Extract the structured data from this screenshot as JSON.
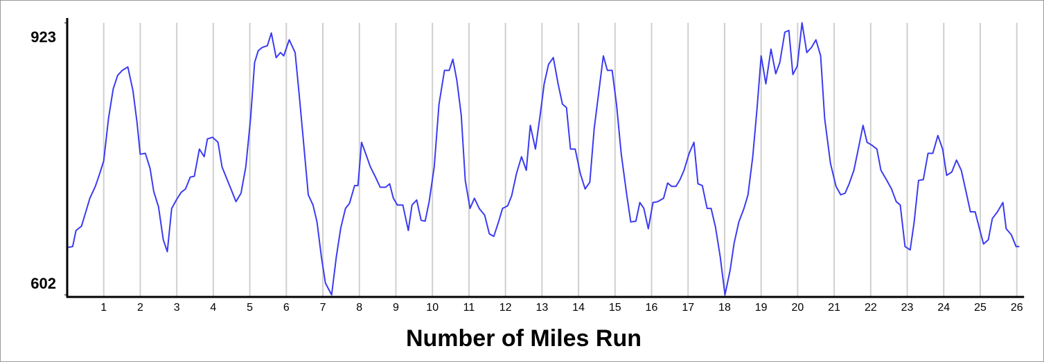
{
  "chart_data": {
    "type": "line",
    "x_label": "Number of Miles Run",
    "color": "#3a3af0",
    "xlim": [
      0,
      26.2
    ],
    "xticks": [
      1,
      2,
      3,
      4,
      5,
      6,
      7,
      8,
      9,
      10,
      11,
      12,
      13,
      14,
      15,
      16,
      17,
      18,
      19,
      20,
      21,
      22,
      23,
      24,
      25,
      26
    ],
    "ylim": [
      602,
      923
    ],
    "yticks": [
      602,
      923
    ],
    "grid": true,
    "x": [
      0.03,
      0.15,
      0.24,
      0.39,
      0.51,
      0.62,
      0.77,
      0.89,
      1.0,
      1.13,
      1.26,
      1.38,
      1.51,
      1.66,
      1.8,
      1.91,
      2.0,
      2.14,
      2.27,
      2.37,
      2.5,
      2.63,
      2.74,
      2.86,
      2.99,
      3.12,
      3.24,
      3.37,
      3.48,
      3.62,
      3.75,
      3.84,
      3.98,
      4.13,
      4.24,
      4.38,
      4.51,
      4.62,
      4.76,
      4.89,
      5.02,
      5.13,
      5.23,
      5.34,
      5.48,
      5.59,
      5.72,
      5.84,
      5.93,
      6.08,
      6.24,
      6.35,
      6.48,
      6.6,
      6.73,
      6.84,
      6.96,
      7.07,
      7.24,
      7.37,
      7.49,
      7.62,
      7.73,
      7.87,
      7.96,
      8.06,
      8.17,
      8.3,
      8.44,
      8.57,
      8.72,
      8.83,
      8.93,
      9.04,
      9.19,
      9.34,
      9.44,
      9.57,
      9.69,
      9.8,
      9.91,
      10.05,
      10.18,
      10.33,
      10.46,
      10.56,
      10.67,
      10.79,
      10.9,
      11.03,
      11.15,
      11.28,
      11.43,
      11.56,
      11.68,
      11.81,
      11.92,
      12.06,
      12.17,
      12.3,
      12.44,
      12.57,
      12.68,
      12.82,
      12.95,
      13.06,
      13.18,
      13.31,
      13.44,
      13.56,
      13.67,
      13.78,
      13.91,
      14.05,
      14.18,
      14.31,
      14.43,
      14.56,
      14.68,
      14.79,
      14.92,
      15.04,
      15.17,
      15.32,
      15.43,
      15.57,
      15.68,
      15.79,
      15.91,
      16.04,
      16.17,
      16.33,
      16.44,
      16.55,
      16.67,
      16.78,
      16.89,
      17.03,
      17.16,
      17.27,
      17.39,
      17.52,
      17.63,
      17.75,
      17.88,
      18.01,
      18.15,
      18.26,
      18.39,
      18.53,
      18.64,
      18.77,
      18.89,
      19.0,
      19.13,
      19.27,
      19.4,
      19.51,
      19.65,
      19.76,
      19.87,
      19.99,
      20.12,
      20.25,
      20.38,
      20.5,
      20.63,
      20.74,
      20.9,
      21.05,
      21.18,
      21.3,
      21.41,
      21.54,
      21.66,
      21.79,
      21.9,
      22.02,
      22.17,
      22.28,
      22.43,
      22.57,
      22.7,
      22.81,
      22.94,
      23.08,
      23.19,
      23.31,
      23.44,
      23.57,
      23.7,
      23.84,
      23.97,
      24.08,
      24.22,
      24.35,
      24.48,
      24.61,
      24.73,
      24.86,
      24.98,
      25.09,
      25.22,
      25.33,
      25.47,
      25.62,
      25.71,
      25.85,
      25.98,
      26.07
    ],
    "values": [
      658,
      659,
      678,
      683,
      700,
      716,
      730,
      745,
      760,
      810,
      845,
      861,
      867,
      871,
      843,
      806,
      768,
      769,
      751,
      724,
      706,
      667,
      653,
      704,
      714,
      723,
      727,
      741,
      742,
      774,
      765,
      786,
      788,
      782,
      753,
      738,
      724,
      712,
      722,
      753,
      810,
      876,
      890,
      894,
      896,
      911,
      882,
      888,
      884,
      903,
      888,
      839,
      778,
      720,
      708,
      688,
      647,
      616,
      602,
      647,
      681,
      704,
      710,
      731,
      731,
      782,
      769,
      753,
      741,
      729,
      729,
      733,
      716,
      708,
      708,
      678,
      708,
      714,
      690,
      689,
      712,
      753,
      827,
      867,
      867,
      880,
      855,
      814,
      737,
      704,
      716,
      704,
      696,
      674,
      671,
      688,
      704,
      707,
      719,
      745,
      765,
      749,
      802,
      774,
      814,
      851,
      874,
      882,
      851,
      827,
      823,
      774,
      774,
      745,
      727,
      735,
      798,
      843,
      884,
      867,
      867,
      827,
      768,
      720,
      688,
      689,
      711,
      704,
      680,
      711,
      712,
      716,
      734,
      730,
      730,
      738,
      749,
      769,
      782,
      733,
      731,
      704,
      704,
      682,
      647,
      602,
      631,
      663,
      688,
      704,
      720,
      765,
      823,
      884,
      851,
      892,
      863,
      876,
      912,
      914,
      862,
      872,
      923,
      888,
      894,
      903,
      884,
      810,
      757,
      730,
      720,
      722,
      733,
      749,
      774,
      802,
      782,
      779,
      774,
      749,
      738,
      727,
      712,
      708,
      659,
      655,
      688,
      737,
      738,
      769,
      769,
      790,
      774,
      743,
      747,
      761,
      749,
      724,
      700,
      700,
      680,
      662,
      667,
      692,
      700,
      711,
      680,
      673,
      659,
      659
    ]
  }
}
